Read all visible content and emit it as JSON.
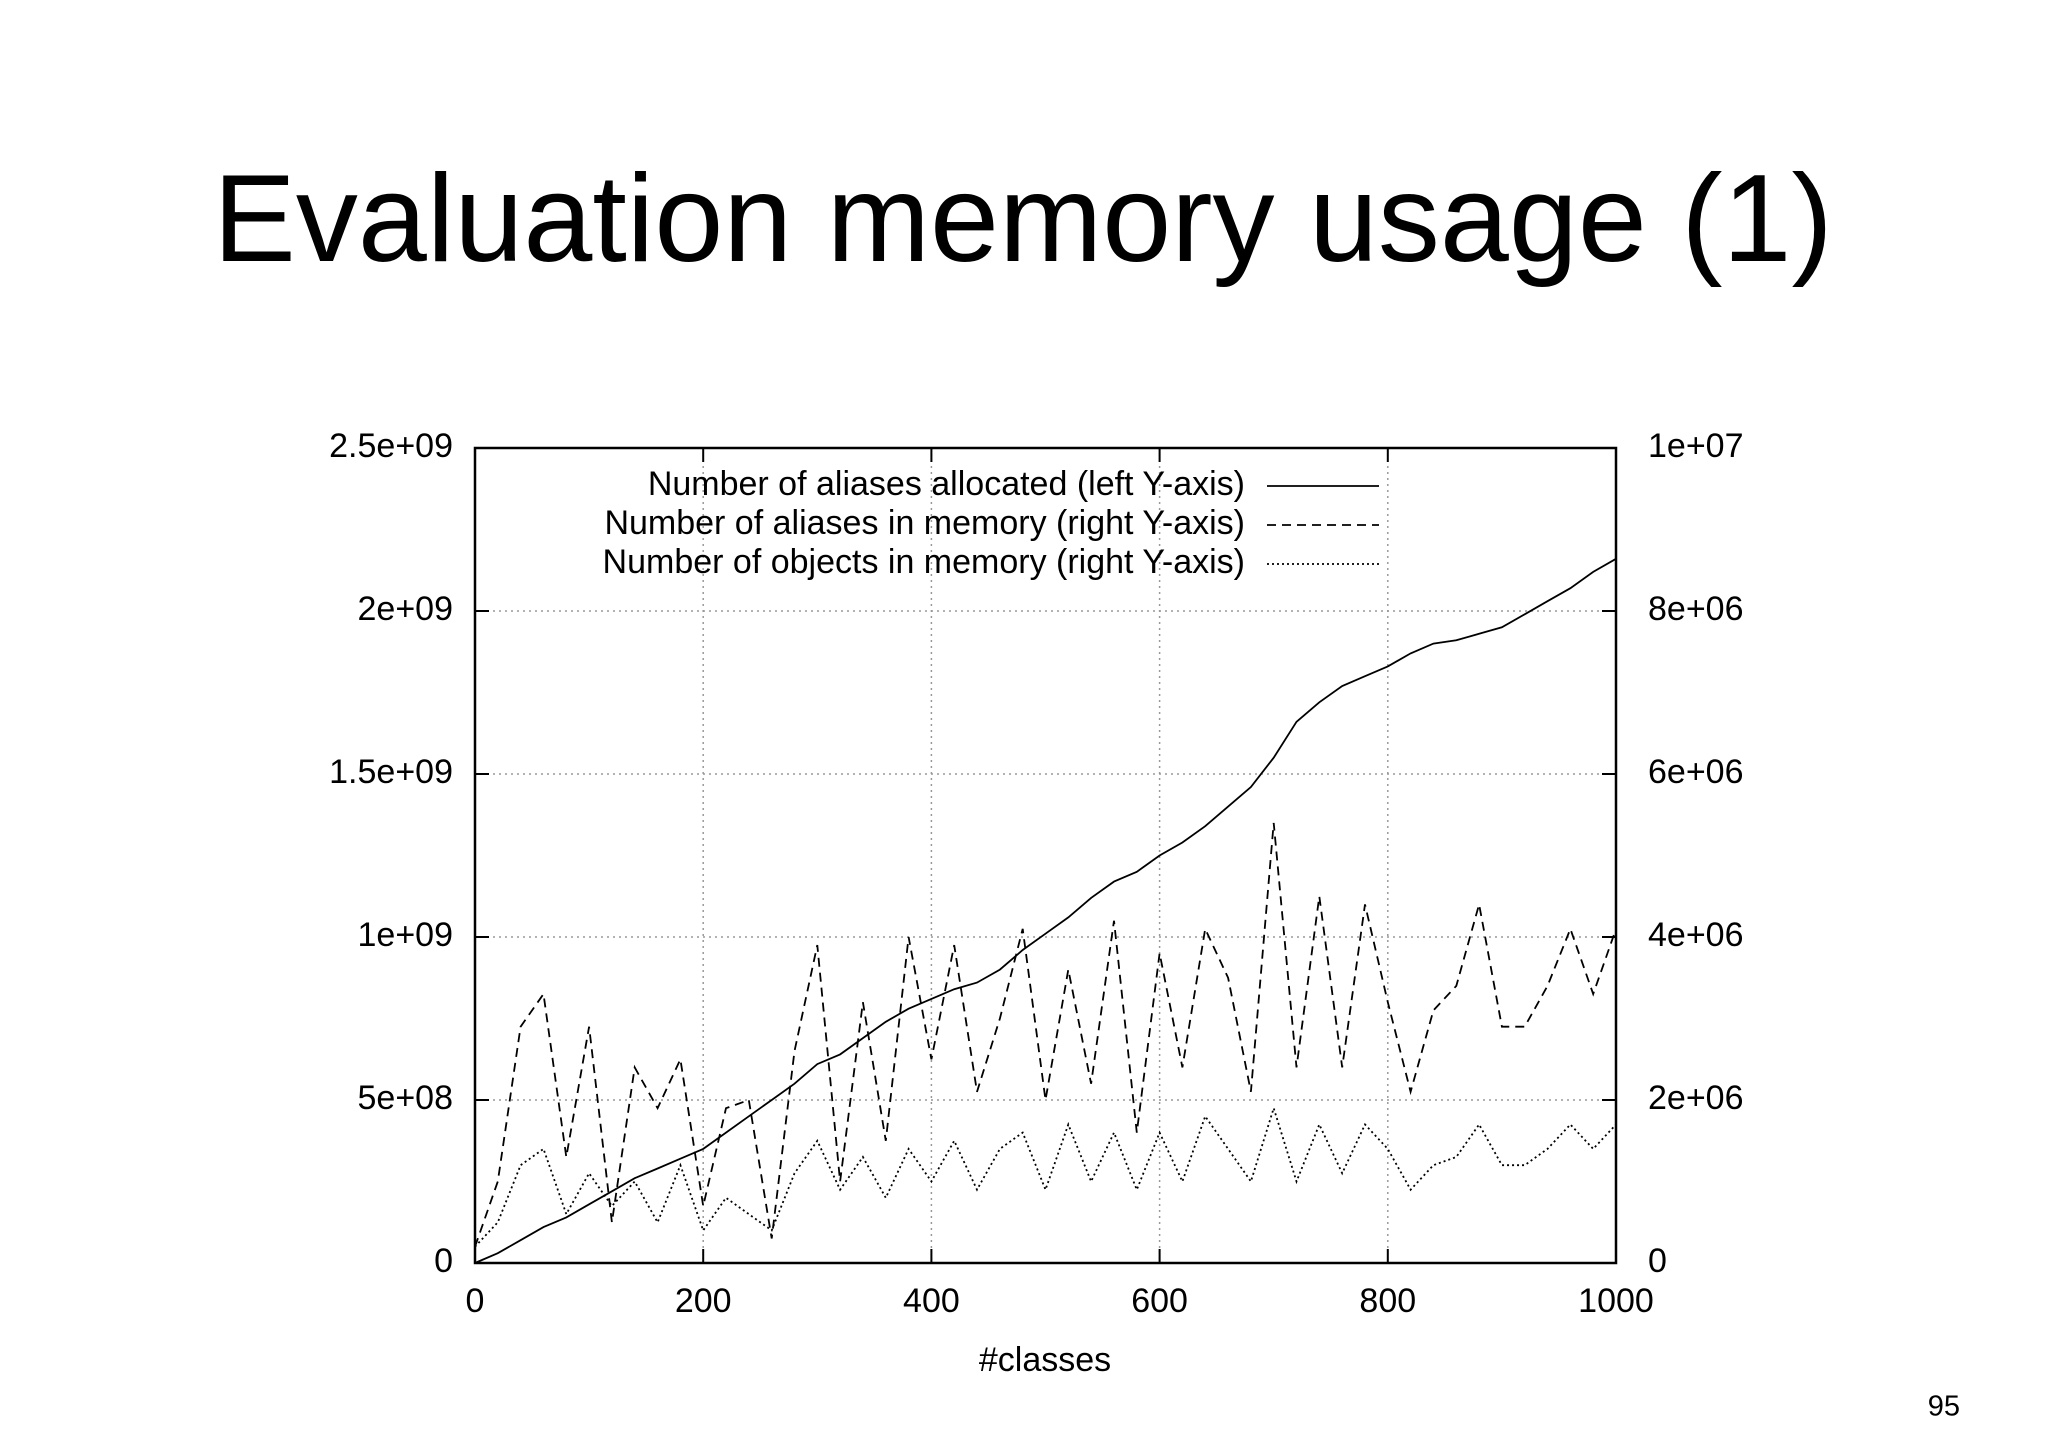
{
  "page_number": "95",
  "chart_data": {
    "type": "line",
    "title": "Evaluation memory usage (1)",
    "xlabel": "#classes",
    "x": [
      0,
      20,
      40,
      60,
      80,
      100,
      120,
      140,
      160,
      180,
      200,
      220,
      240,
      260,
      280,
      300,
      320,
      340,
      360,
      380,
      400,
      420,
      440,
      460,
      480,
      500,
      520,
      540,
      560,
      580,
      600,
      620,
      640,
      660,
      680,
      700,
      720,
      740,
      760,
      780,
      800,
      820,
      840,
      860,
      880,
      900,
      920,
      940,
      960,
      980,
      1000
    ],
    "xlim": [
      0,
      1000
    ],
    "xticks": [
      0,
      200,
      400,
      600,
      800,
      1000
    ],
    "ylim": [
      0,
      2500000000
    ],
    "yticks": [
      0,
      {
        "value": 500000000,
        "label": "5e+08"
      },
      {
        "value": 1000000000,
        "label": "1e+09"
      },
      {
        "value": 1500000000,
        "label": "1.5e+09"
      },
      {
        "value": 2000000000,
        "label": "2e+09"
      },
      {
        "value": 2500000000,
        "label": "2.5e+09"
      }
    ],
    "y2lim": [
      0,
      10000000
    ],
    "y2ticks": [
      0,
      {
        "value": 2000000,
        "label": "2e+06"
      },
      {
        "value": 4000000,
        "label": "4e+06"
      },
      {
        "value": 6000000,
        "label": "6e+06"
      },
      {
        "value": 8000000,
        "label": "8e+06"
      },
      {
        "value": 10000000,
        "label": "1e+07"
      }
    ],
    "grid": true,
    "series": [
      {
        "name": "Number of aliases allocated (left Y-axis)",
        "color": "#000000",
        "dash": "solid",
        "values": [
          0,
          30000000.0,
          70000000.0,
          110000000.0,
          140000000.0,
          180000000.0,
          220000000.0,
          260000000.0,
          290000000.0,
          320000000.0,
          350000000.0,
          400000000.0,
          450000000.0,
          500000000.0,
          550000000.0,
          610000000.0,
          640000000.0,
          690000000.0,
          740000000.0,
          780000000.0,
          810000000.0,
          840000000.0,
          860000000.0,
          900000000.0,
          960000000.0,
          1010000000.0,
          1060000000.0,
          1120000000.0,
          1170000000.0,
          1200000000.0,
          1250000000.0,
          1290000000.0,
          1340000000.0,
          1400000000.0,
          1460000000.0,
          1550000000.0,
          1660000000.0,
          1720000000.0,
          1770000000.0,
          1800000000.0,
          1830000000.0,
          1870000000.0,
          1900000000.0,
          1910000000.0,
          1930000000.0,
          1950000000.0,
          1990000000.0,
          2030000000.0,
          2070000000.0,
          2120000000.0,
          2160000000.0
        ]
      },
      {
        "name": "Number of aliases in memory (right Y-axis)",
        "color": "#000000",
        "dash": "dashed",
        "axis": "y2",
        "values": [
          200000.0,
          1000000.0,
          2900000.0,
          3300000.0,
          1300000.0,
          2900000.0,
          500000.0,
          2400000.0,
          1900000.0,
          2500000.0,
          700000.0,
          1900000.0,
          2000000.0,
          300000.0,
          2600000.0,
          3900000.0,
          1000000.0,
          3200000.0,
          1500000.0,
          4000000.0,
          2500000.0,
          3900000.0,
          2100000.0,
          3000000.0,
          4100000.0,
          2000000.0,
          3600000.0,
          2200000.0,
          4200000.0,
          1600000.0,
          3800000.0,
          2400000.0,
          4100000.0,
          3500000.0,
          2100000.0,
          5400000.0,
          2400000.0,
          4500000.0,
          2400000.0,
          4400000.0,
          3200000.0,
          2100000.0,
          3100000.0,
          3400000.0,
          4400000.0,
          2900000.0,
          2900000.0,
          3400000.0,
          4100000.0,
          3300000.0,
          4100000.0
        ]
      },
      {
        "name": "Number of objects in memory (right Y-axis)",
        "color": "#000000",
        "dash": "dotted",
        "axis": "y2",
        "values": [
          200000.0,
          500000.0,
          1200000.0,
          1400000.0,
          600000.0,
          1100000.0,
          700000.0,
          1000000.0,
          500000.0,
          1200000.0,
          400000.0,
          800000.0,
          600000.0,
          400000.0,
          1100000.0,
          1500000.0,
          900000.0,
          1300000.0,
          800000.0,
          1400000.0,
          1000000.0,
          1500000.0,
          900000.0,
          1400000.0,
          1600000.0,
          900000.0,
          1700000.0,
          1000000.0,
          1600000.0,
          900000.0,
          1600000.0,
          1000000.0,
          1800000.0,
          1400000.0,
          1000000.0,
          1900000.0,
          1000000.0,
          1700000.0,
          1100000.0,
          1700000.0,
          1400000.0,
          900000.0,
          1200000.0,
          1300000.0,
          1700000.0,
          1200000.0,
          1200000.0,
          1400000.0,
          1700000.0,
          1400000.0,
          1700000.0
        ]
      }
    ]
  }
}
